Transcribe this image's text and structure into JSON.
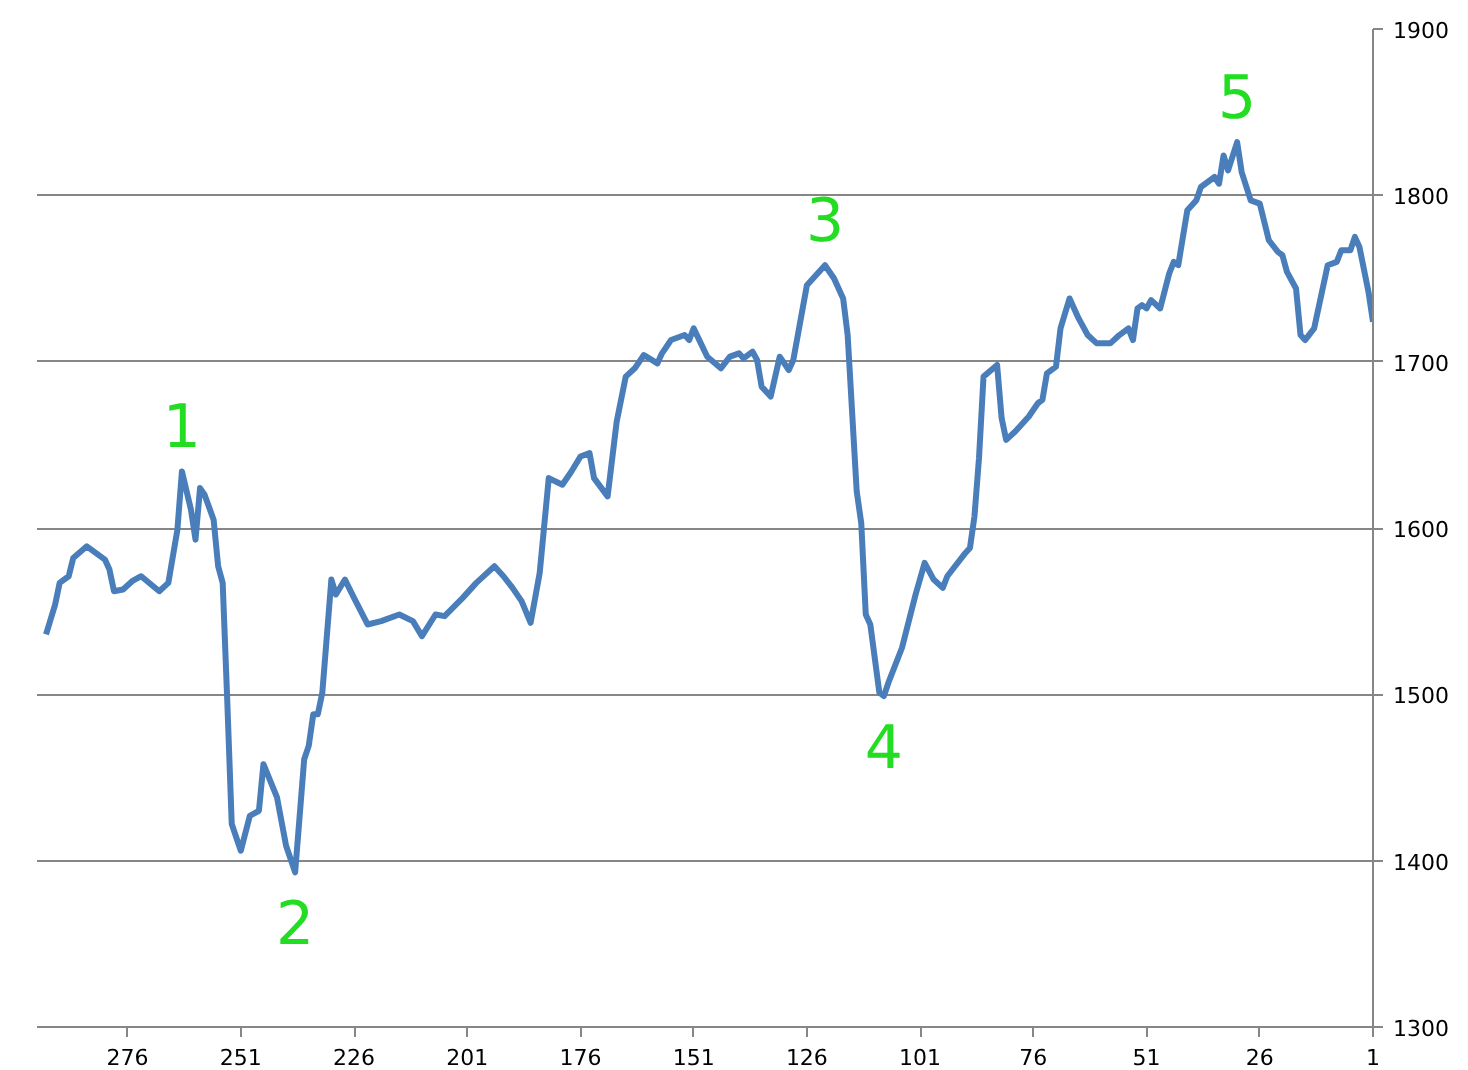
{
  "chart_data": {
    "type": "line",
    "x": [
      294,
      292,
      291,
      289,
      288,
      285,
      281,
      280,
      279,
      277,
      275,
      273,
      269,
      267,
      265,
      264,
      262,
      261,
      260,
      259,
      257,
      256,
      255,
      254,
      253,
      251,
      249,
      247,
      246,
      243,
      241,
      239,
      237,
      236,
      235,
      234,
      233,
      231,
      230,
      228,
      226,
      223,
      220,
      216,
      213,
      211,
      208,
      206,
      202,
      199,
      195,
      193,
      191,
      189,
      187,
      185,
      183,
      180,
      178,
      176,
      174,
      173,
      170,
      168,
      166,
      164,
      162,
      159,
      158,
      156,
      153,
      152,
      151,
      148,
      145,
      143,
      141,
      140,
      138,
      137,
      136,
      134,
      132,
      130,
      129,
      126,
      124,
      122,
      120,
      118,
      117,
      115,
      114,
      113,
      112,
      110,
      109,
      108,
      105,
      102,
      100,
      98,
      96,
      95,
      91,
      90,
      89,
      88,
      87,
      84,
      83,
      82,
      80,
      77,
      75,
      74,
      73,
      71,
      70,
      68,
      66,
      64,
      62,
      59,
      57,
      55,
      54,
      53,
      52,
      51,
      50,
      48,
      46,
      45,
      44,
      42,
      40,
      39,
      36,
      35,
      34,
      33,
      31,
      30,
      28,
      26,
      24,
      22,
      21,
      20,
      18,
      17,
      16,
      14,
      11,
      9,
      8,
      6,
      5,
      4,
      2,
      1
    ],
    "series": [
      {
        "color": "#4a7ebb",
        "values": [
          1536,
          1554,
          1567,
          1571,
          1582,
          1589,
          1581,
          1575,
          1562,
          1563,
          1568,
          1571,
          1562,
          1567,
          1599,
          1634,
          1611,
          1593,
          1624,
          1620,
          1605,
          1577,
          1567,
          1497,
          1422,
          1406,
          1427,
          1430,
          1458,
          1438,
          1409,
          1393,
          1461,
          1469,
          1488,
          1488,
          1501,
          1569,
          1560,
          1569,
          1558,
          1542,
          1544,
          1548,
          1544,
          1535,
          1548,
          1547,
          1558,
          1567,
          1577,
          1571,
          1564,
          1556,
          1543,
          1573,
          1630,
          1626,
          1634,
          1643,
          1645,
          1630,
          1619,
          1664,
          1691,
          1696,
          1704,
          1699,
          1705,
          1713,
          1716,
          1713,
          1720,
          1703,
          1696,
          1703,
          1705,
          1702,
          1706,
          1701,
          1685,
          1679,
          1703,
          1695,
          1701,
          1746,
          1752,
          1758,
          1750,
          1738,
          1716,
          1622,
          1603,
          1548,
          1542,
          1501,
          1499,
          1507,
          1528,
          1560,
          1579,
          1569,
          1564,
          1571,
          1585,
          1588,
          1607,
          1642,
          1691,
          1698,
          1666,
          1653,
          1658,
          1667,
          1675,
          1677,
          1693,
          1697,
          1720,
          1738,
          1726,
          1716,
          1711,
          1711,
          1716,
          1720,
          1713,
          1732,
          1734,
          1732,
          1737,
          1732,
          1753,
          1760,
          1758,
          1791,
          1797,
          1805,
          1811,
          1807,
          1824,
          1815,
          1832,
          1814,
          1797,
          1795,
          1773,
          1766,
          1764,
          1754,
          1744,
          1716,
          1713,
          1720,
          1758,
          1760,
          1767,
          1767,
          1775,
          1769,
          1742,
          1724
        ]
      }
    ],
    "xlim": [
      296,
      1
    ],
    "xticks": [
      276,
      251,
      226,
      201,
      176,
      151,
      126,
      101,
      76,
      51,
      26,
      1
    ],
    "ylim": [
      1300,
      1900
    ],
    "yticks": [
      1300,
      1400,
      1500,
      1600,
      1700,
      1800,
      1900
    ],
    "grid": "y",
    "annotations": [
      {
        "text": "1",
        "x": 264,
        "y": 1634
      },
      {
        "text": "2",
        "x": 239,
        "y": 1393
      },
      {
        "text": "3",
        "x": 122,
        "y": 1758
      },
      {
        "text": "4",
        "x": 109,
        "y": 1499
      },
      {
        "text": "5",
        "x": 31,
        "y": 1832
      }
    ]
  }
}
